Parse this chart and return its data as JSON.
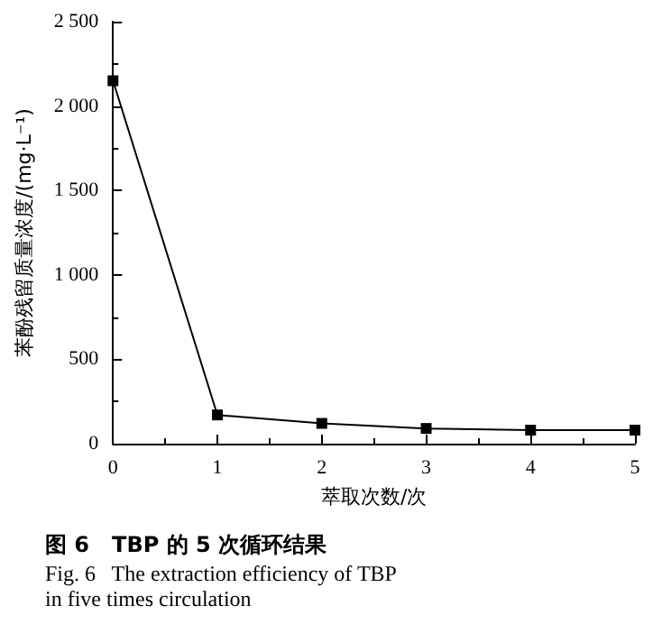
{
  "chart_data": {
    "type": "line",
    "title": "图 6   TBP 的 5 次循环结果",
    "subtitle": "Fig. 6   The extraction efficiency of TBP\nin five times circulation",
    "xlabel": "萃取次数/次",
    "ylabel": "苯酚残留质量浓度/(mg·L⁻¹)",
    "x": [
      0,
      1,
      2,
      3,
      4,
      5
    ],
    "series": [
      {
        "color": "#000000",
        "values": [
          2150,
          170,
          120,
          90,
          80,
          80
        ]
      }
    ],
    "xlim": [
      0,
      5
    ],
    "xticks": [
      0,
      1,
      2,
      3,
      4,
      5
    ],
    "ylim": [
      0,
      2500
    ],
    "yticks": [
      {
        "value": 0,
        "label": "0"
      },
      {
        "value": 500,
        "label": "500"
      },
      {
        "value": 1000,
        "label": "1 000"
      },
      {
        "value": 1500,
        "label": "1 500"
      },
      {
        "value": 2000,
        "label": "2 000"
      },
      {
        "value": 2500,
        "label": "2 500"
      }
    ],
    "grid": false,
    "marker": "square",
    "line_style": "solid"
  }
}
